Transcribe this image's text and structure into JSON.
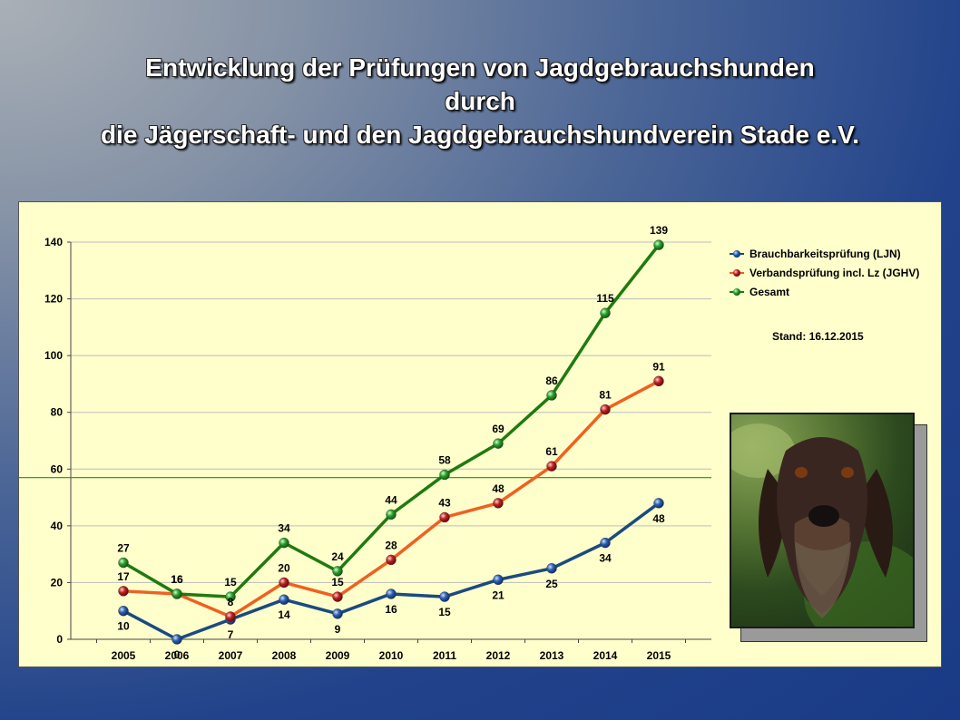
{
  "title_lines": [
    "Entwicklung der Prüfungen von Jagdgebrauchshunden",
    "durch",
    "die Jägerschaft- und den Jagdgebrauchshundverein Stade e.V."
  ],
  "stand_text": "Stand: 16.12.2015",
  "photo_alt": "Drahthaar",
  "chart_data": {
    "type": "line",
    "title": "Entwicklung der Prüfungen von Jagdgebrauchshunden",
    "xlabel": "",
    "ylabel": "",
    "categories": [
      "2005",
      "2006",
      "2007",
      "2008",
      "2009",
      "2010",
      "2011",
      "2012",
      "2013",
      "2014",
      "2015"
    ],
    "ylim": [
      0,
      140
    ],
    "yticks": [
      0,
      20,
      40,
      60,
      80,
      100,
      120,
      140
    ],
    "grid": true,
    "legend_position": "top-right",
    "reference_line": 57,
    "series": [
      {
        "name": "Brauchbarkeitsprüfung (LJN)",
        "color": "#1a4a80",
        "marker": "#2a5fb0",
        "label_pos": "below",
        "values": [
          10,
          0,
          7,
          14,
          9,
          16,
          15,
          21,
          25,
          34,
          48
        ]
      },
      {
        "name": "Verbandsprüfung incl. Lz (JGHV)",
        "color": "#f06020",
        "marker": "#c02020",
        "label_pos": "above",
        "values": [
          17,
          16,
          8,
          20,
          15,
          28,
          43,
          48,
          61,
          81,
          91
        ]
      },
      {
        "name": "Gesamt",
        "color": "#1f7a10",
        "marker": "#2aa02a",
        "label_pos": "above",
        "values": [
          27,
          16,
          15,
          34,
          24,
          44,
          58,
          69,
          86,
          115,
          139
        ]
      }
    ]
  }
}
